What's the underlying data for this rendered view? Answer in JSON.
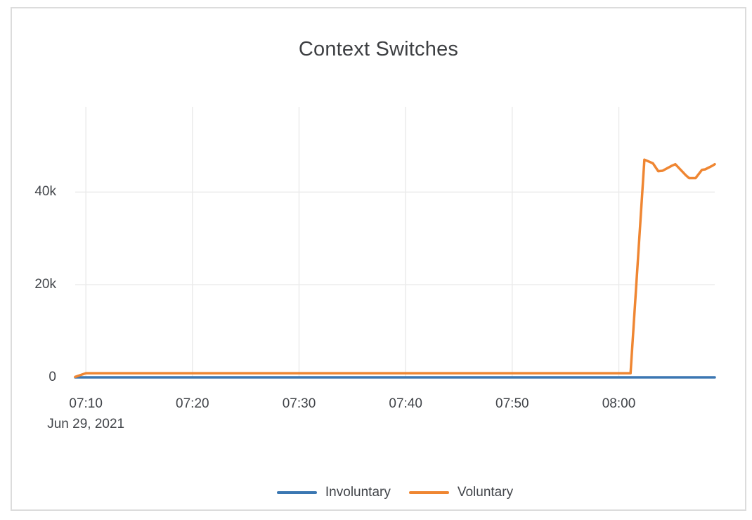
{
  "card": {
    "title": "Context Switches"
  },
  "colors": {
    "involuntary": "#3b77b2",
    "voluntary": "#ef8632",
    "gridline": "#eaeaea",
    "text": "#42454a",
    "border": "#dcdcdc"
  },
  "chart_data": {
    "type": "line",
    "title": "Context Switches",
    "grid": true,
    "legend_position": "bottom-center",
    "x_axis": {
      "date_label": "Jun 29, 2021",
      "tick_labels": [
        "07:10",
        "07:20",
        "07:30",
        "07:40",
        "07:50",
        "08:00"
      ],
      "tick_minutes": [
        1,
        11,
        21,
        31,
        41,
        51
      ],
      "range_minutes": [
        0,
        60
      ],
      "range_time": [
        "07:09",
        "08:09"
      ]
    },
    "y_axis": {
      "tick_labels": [
        "0",
        "20k",
        "40k"
      ],
      "tick_values": [
        0,
        20000,
        40000
      ],
      "range": [
        0,
        58400
      ]
    },
    "legend": [
      {
        "name": "Involuntary",
        "color": "#3b77b2"
      },
      {
        "name": "Voluntary",
        "color": "#ef8632"
      }
    ],
    "series": [
      {
        "name": "Involuntary",
        "color": "#3b77b2",
        "points": [
          [
            0,
            0
          ],
          [
            60,
            0
          ]
        ]
      },
      {
        "name": "Voluntary",
        "color": "#ef8632",
        "points": [
          [
            0,
            100
          ],
          [
            1,
            900
          ],
          [
            10,
            900
          ],
          [
            20,
            900
          ],
          [
            30,
            900
          ],
          [
            40,
            900
          ],
          [
            50,
            900
          ],
          [
            52.1,
            900
          ],
          [
            53.4,
            47000
          ],
          [
            54.2,
            46200
          ],
          [
            54.7,
            44500
          ],
          [
            55.1,
            44600
          ],
          [
            56.0,
            45700
          ],
          [
            56.3,
            46000
          ],
          [
            57.3,
            43600
          ],
          [
            57.6,
            43000
          ],
          [
            58.2,
            43000
          ],
          [
            58.8,
            44800
          ],
          [
            59.1,
            44900
          ],
          [
            59.8,
            45700
          ],
          [
            60,
            46000
          ]
        ]
      }
    ]
  }
}
